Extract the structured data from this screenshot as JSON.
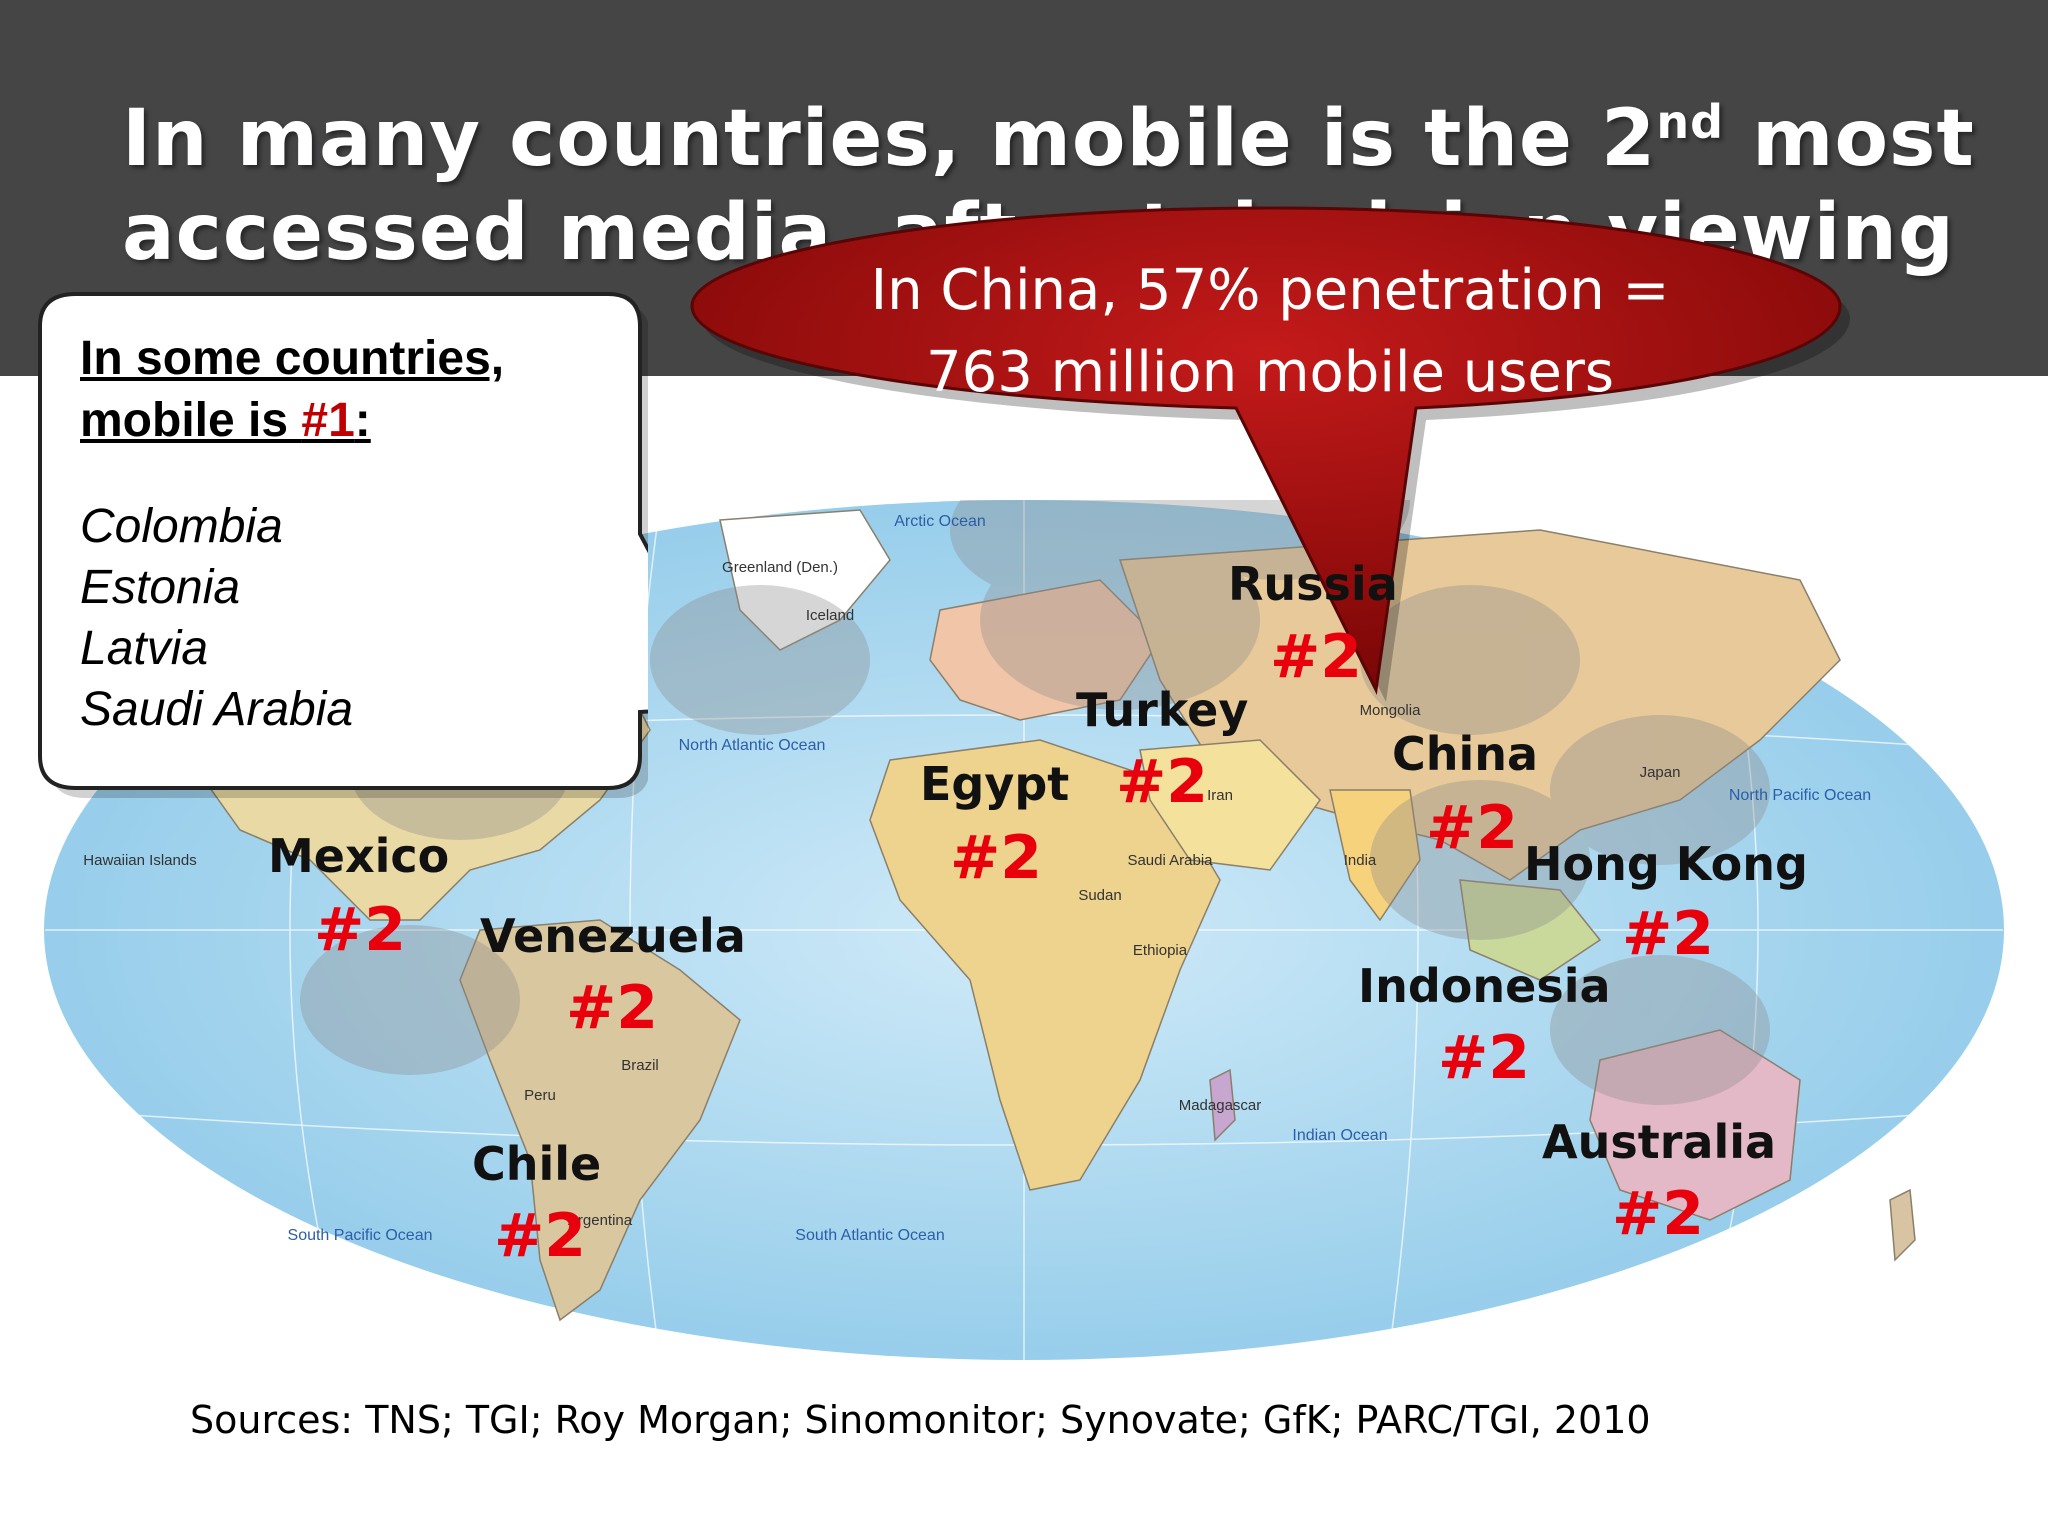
{
  "title": {
    "line1_before": "In many countries, mobile is the 2",
    "line1_sup": "nd",
    "line1_after": " most",
    "line2": "accessed media, after television viewing"
  },
  "callout": {
    "heading_line1": "In some countries,",
    "heading_line2_prefix": "mobile is ",
    "heading_line2_number": "#1",
    "heading_line2_suffix": ":",
    "countries": [
      "Colombia",
      "Estonia",
      "Latvia",
      "Saudi Arabia"
    ]
  },
  "china_bubble": {
    "line1": "In China, 57% penetration =",
    "line2": "763 million mobile users",
    "fill_color": "#a80d0d"
  },
  "markers": [
    {
      "country": "Russia",
      "rank": "#2"
    },
    {
      "country": "Turkey",
      "rank": "#2"
    },
    {
      "country": "Egypt",
      "rank": "#2"
    },
    {
      "country": "China",
      "rank": "#2"
    },
    {
      "country": "Mexico",
      "rank": "#2"
    },
    {
      "country": "Venezuela",
      "rank": "#2"
    },
    {
      "country": "Hong Kong",
      "rank": "#2"
    },
    {
      "country": "Indonesia",
      "rank": "#2"
    },
    {
      "country": "Chile",
      "rank": "#2"
    },
    {
      "country": "Australia",
      "rank": "#2"
    }
  ],
  "map_labels": {
    "arctic_ocean": "Arctic Ocean",
    "north_atlantic": "North Atlantic Ocean",
    "south_atlantic": "South Atlantic Ocean",
    "north_pacific": "North Pacific Ocean",
    "south_pacific": "South Pacific Ocean",
    "indian_ocean": "Indian Ocean",
    "greenland": "Greenland (Den.)",
    "brazil": "Brazil",
    "argentina": "Argentina",
    "peru": "Peru",
    "india": "India",
    "mongolia": "Mongolia",
    "iceland": "Iceland",
    "saudi_arabia": "Saudi Arabia",
    "hawaiian": "Hawaiian Islands",
    "madagascar": "Madagascar",
    "japan": "Japan",
    "iran": "Iran",
    "sudan": "Sudan",
    "ethiopia": "Ethiopia"
  },
  "sources": "Sources: TNS; TGI; Roy Morgan; Sinomonitor; Synovate; GfK; PARC/TGI, 2010",
  "colors": {
    "header": "#454546",
    "ocean": "#a9d6ee",
    "rank_red": "#e8000d",
    "bubble_red": "#a80d0d"
  }
}
